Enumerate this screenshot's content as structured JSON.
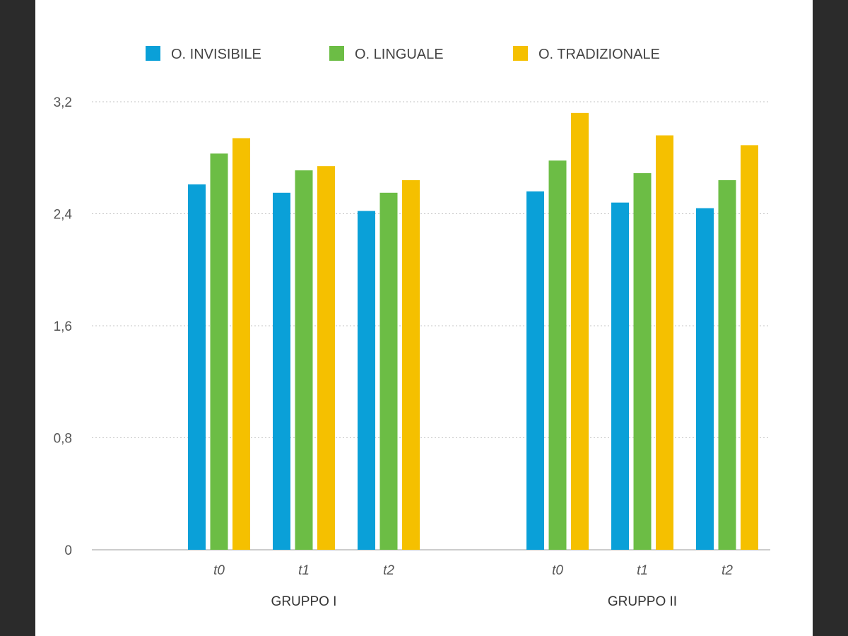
{
  "chart_data": {
    "type": "bar",
    "title": "",
    "xlabel": "",
    "ylabel": "",
    "ylim": [
      0,
      3.2
    ],
    "yticks": [
      "0",
      "0,8",
      "1,6",
      "2,4",
      "3,2"
    ],
    "ytick_values": [
      0,
      0.8,
      1.6,
      2.4,
      3.2
    ],
    "grid": true,
    "legend_position": "top",
    "groups": [
      {
        "name": "GRUPPO I",
        "categories": [
          "t0",
          "t1",
          "t2"
        ]
      },
      {
        "name": "GRUPPO II",
        "categories": [
          "t0",
          "t1",
          "t2"
        ]
      }
    ],
    "series": [
      {
        "name": "O. INVISIBILE",
        "color": "#0aa0d8",
        "values": [
          [
            2.61,
            2.55,
            2.42
          ],
          [
            2.56,
            2.48,
            2.44
          ]
        ]
      },
      {
        "name": "O. LINGUALE",
        "color": "#6cbd45",
        "values": [
          [
            2.83,
            2.71,
            2.55
          ],
          [
            2.78,
            2.69,
            2.64
          ]
        ]
      },
      {
        "name": "O. TRADIZIONALE",
        "color": "#f5c000",
        "values": [
          [
            2.94,
            2.74,
            2.64
          ],
          [
            3.12,
            2.96,
            2.89
          ]
        ]
      }
    ]
  }
}
